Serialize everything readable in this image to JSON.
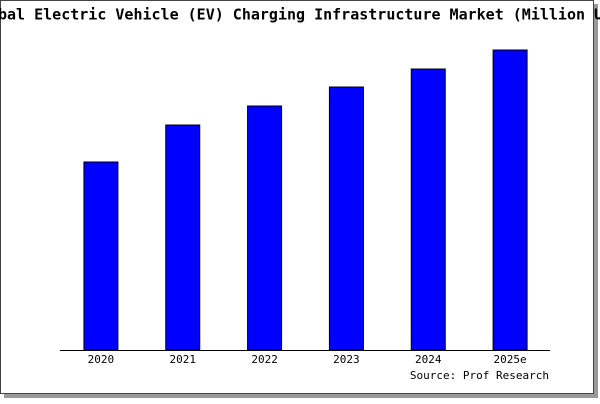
{
  "chart_data": {
    "type": "bar",
    "title": "bal Electric Vehicle (EV) Charging Infrastructure Market (Million U",
    "categories": [
      "2020",
      "2021",
      "2022",
      "2023",
      "2024",
      "2025e"
    ],
    "values": [
      188,
      225,
      244,
      263,
      281,
      300
    ],
    "color": "#0000ff",
    "ylim": [
      0,
      300
    ],
    "source": "Source: Prof Research"
  }
}
